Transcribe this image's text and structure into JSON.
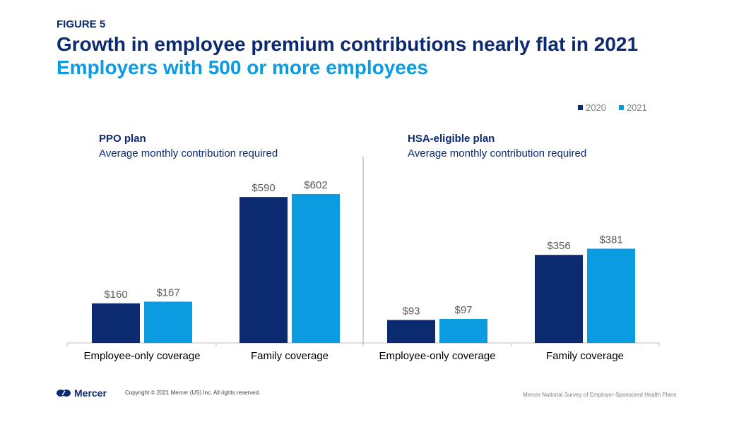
{
  "header": {
    "figure_label": "FIGURE 5",
    "title": "Growth in employee premium contributions nearly flat in 2021",
    "subtitle": "Employers with 500 or more employees"
  },
  "colors": {
    "y2020": "#0b2a6f",
    "y2021": "#0a9be0",
    "label": "#595959"
  },
  "chart_data": [
    {
      "type": "bar",
      "title": "PPO plan",
      "subtitle": "Average monthly  contribution required",
      "categories": [
        "Employee-only coverage",
        "Family coverage"
      ],
      "series": [
        {
          "name": "2020",
          "values": [
            160,
            590
          ],
          "labels": [
            "$160",
            "$590"
          ]
        },
        {
          "name": "2021",
          "values": [
            167,
            602
          ],
          "labels": [
            "$167",
            "$602"
          ]
        }
      ],
      "legend": "top-right",
      "grid": false
    },
    {
      "type": "bar",
      "title": "HSA-eligible  plan",
      "subtitle": "Average monthly  contribution required",
      "categories": [
        "Employee-only coverage",
        "Family coverage"
      ],
      "series": [
        {
          "name": "2020",
          "values": [
            93,
            356
          ],
          "labels": [
            "$93",
            "$356"
          ]
        },
        {
          "name": "2021",
          "values": [
            97,
            381
          ],
          "labels": [
            "$97",
            "$381"
          ]
        }
      ],
      "legend": "top-right",
      "grid": false
    }
  ],
  "footer": {
    "logo_text": "Mercer",
    "copyright": "Copyright © 2021 Mercer (US) Inc. All rights reserved.",
    "source": "Mercer National Survey of Employer-Sponsored Health Plans"
  }
}
